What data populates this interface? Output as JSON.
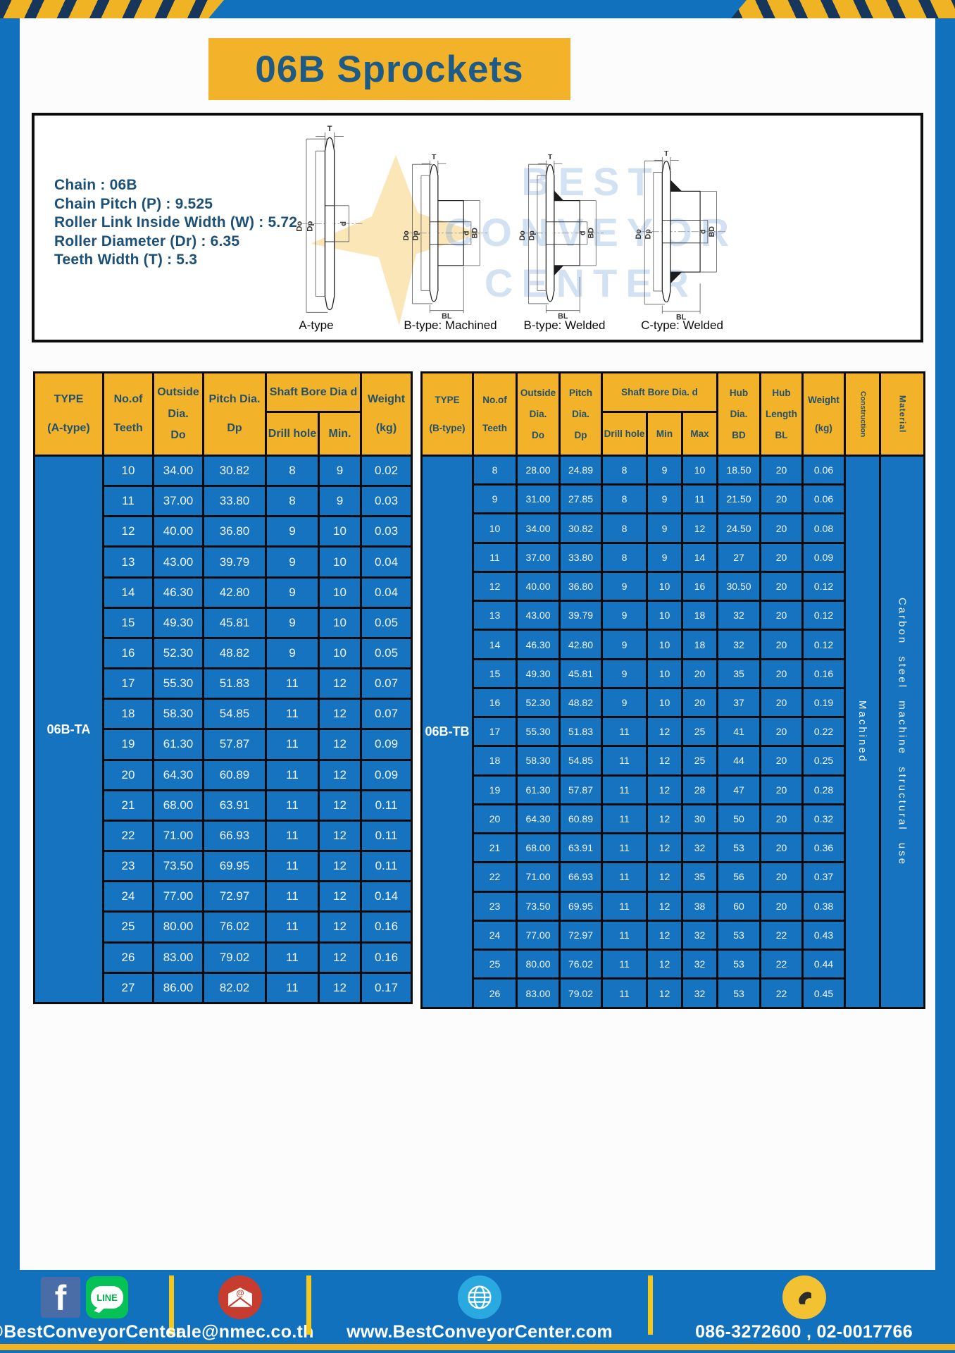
{
  "title": "06B Sprockets",
  "specs": [
    "Chain : 06B",
    "Chain Pitch (P) : 9.525",
    "Roller Link Inside Width (W) : 5.72",
    "Roller Diameter (Dr) : 6.35",
    "Teeth Width (T) : 5.3"
  ],
  "watermark": [
    "BEST",
    "CONVEYOR",
    "CENTER"
  ],
  "diagram": {
    "captions": [
      "A-type",
      "B-type: Machined",
      "B-type: Welded",
      "C-type: Welded"
    ],
    "labels": {
      "t": "T",
      "do": "Do",
      "dp": "Dp",
      "d": "d",
      "bd": "BD",
      "bl": "BL"
    }
  },
  "colors": {
    "page_blue": "#1271bd",
    "cell_blue": "#1673bf",
    "accent_yellow": "#f2b229",
    "stripe_navy": "#16365c",
    "header_text": "#24506a",
    "spec_text": "#1d5077"
  },
  "table_a": {
    "header": {
      "type": [
        "TYPE",
        "(A-type)"
      ],
      "teeth": [
        "No.of",
        "Teeth"
      ],
      "outside": [
        "Outside",
        "Dia.",
        "Do"
      ],
      "pitch": [
        "Pitch Dia.",
        "Dp"
      ],
      "shaft": "Shaft Bore Dia d",
      "drill": "Drill hole",
      "min": "Min.",
      "weight": [
        "Weight",
        "(kg)"
      ]
    },
    "group_label": "06B-TA",
    "rows": [
      [
        "10",
        "34.00",
        "30.82",
        "8",
        "9",
        "0.02"
      ],
      [
        "11",
        "37.00",
        "33.80",
        "8",
        "9",
        "0.03"
      ],
      [
        "12",
        "40.00",
        "36.80",
        "9",
        "10",
        "0.03"
      ],
      [
        "13",
        "43.00",
        "39.79",
        "9",
        "10",
        "0.04"
      ],
      [
        "14",
        "46.30",
        "42.80",
        "9",
        "10",
        "0.04"
      ],
      [
        "15",
        "49.30",
        "45.81",
        "9",
        "10",
        "0.05"
      ],
      [
        "16",
        "52.30",
        "48.82",
        "9",
        "10",
        "0.05"
      ],
      [
        "17",
        "55.30",
        "51.83",
        "11",
        "12",
        "0.07"
      ],
      [
        "18",
        "58.30",
        "54.85",
        "11",
        "12",
        "0.07"
      ],
      [
        "19",
        "61.30",
        "57.87",
        "11",
        "12",
        "0.09"
      ],
      [
        "20",
        "64.30",
        "60.89",
        "11",
        "12",
        "0.09"
      ],
      [
        "21",
        "68.00",
        "63.91",
        "11",
        "12",
        "0.11"
      ],
      [
        "22",
        "71.00",
        "66.93",
        "11",
        "12",
        "0.11"
      ],
      [
        "23",
        "73.50",
        "69.95",
        "11",
        "12",
        "0.11"
      ],
      [
        "24",
        "77.00",
        "72.97",
        "11",
        "12",
        "0.14"
      ],
      [
        "25",
        "80.00",
        "76.02",
        "11",
        "12",
        "0.16"
      ],
      [
        "26",
        "83.00",
        "79.02",
        "11",
        "12",
        "0.16"
      ],
      [
        "27",
        "86.00",
        "82.02",
        "11",
        "12",
        "0.17"
      ]
    ]
  },
  "table_b": {
    "header": {
      "type": [
        "TYPE",
        "(B-type)"
      ],
      "teeth": [
        "No.of",
        "Teeth"
      ],
      "outside": [
        "Outside",
        "Dia.",
        "Do"
      ],
      "pitch": [
        "Pitch",
        "Dia.",
        "Dp"
      ],
      "shaft": "Shaft Bore Dia.  d",
      "drill": "Drill hole",
      "min": "Min",
      "max": "Max",
      "hub_dia": [
        "Hub",
        "Dia.",
        "BD"
      ],
      "hub_len": [
        "Hub",
        "Length",
        "BL"
      ],
      "weight": [
        "Weight",
        "(kg)"
      ],
      "construction": "Construction",
      "material": "Material"
    },
    "group_label": "06B-TB",
    "construction": "Machined",
    "material": "Carbon steel machine structural use",
    "rows": [
      [
        "8",
        "28.00",
        "24.89",
        "8",
        "9",
        "10",
        "18.50",
        "20",
        "0.06"
      ],
      [
        "9",
        "31.00",
        "27.85",
        "8",
        "9",
        "11",
        "21.50",
        "20",
        "0.06"
      ],
      [
        "10",
        "34.00",
        "30.82",
        "8",
        "9",
        "12",
        "24.50",
        "20",
        "0.08"
      ],
      [
        "11",
        "37.00",
        "33.80",
        "8",
        "9",
        "14",
        "27",
        "20",
        "0.09"
      ],
      [
        "12",
        "40.00",
        "36.80",
        "9",
        "10",
        "16",
        "30.50",
        "20",
        "0.12"
      ],
      [
        "13",
        "43.00",
        "39.79",
        "9",
        "10",
        "18",
        "32",
        "20",
        "0.12"
      ],
      [
        "14",
        "46.30",
        "42.80",
        "9",
        "10",
        "18",
        "32",
        "20",
        "0.12"
      ],
      [
        "15",
        "49.30",
        "45.81",
        "9",
        "10",
        "20",
        "35",
        "20",
        "0.16"
      ],
      [
        "16",
        "52.30",
        "48.82",
        "9",
        "10",
        "20",
        "37",
        "20",
        "0.19"
      ],
      [
        "17",
        "55.30",
        "51.83",
        "11",
        "12",
        "25",
        "41",
        "20",
        "0.22"
      ],
      [
        "18",
        "58.30",
        "54.85",
        "11",
        "12",
        "25",
        "44",
        "20",
        "0.25"
      ],
      [
        "19",
        "61.30",
        "57.87",
        "11",
        "12",
        "28",
        "47",
        "20",
        "0.28"
      ],
      [
        "20",
        "64.30",
        "60.89",
        "11",
        "12",
        "30",
        "50",
        "20",
        "0.32"
      ],
      [
        "21",
        "68.00",
        "63.91",
        "11",
        "12",
        "32",
        "53",
        "20",
        "0.36"
      ],
      [
        "22",
        "71.00",
        "66.93",
        "11",
        "12",
        "35",
        "56",
        "20",
        "0.37"
      ],
      [
        "23",
        "73.50",
        "69.95",
        "11",
        "12",
        "38",
        "60",
        "20",
        "0.38"
      ],
      [
        "24",
        "77.00",
        "72.97",
        "11",
        "12",
        "32",
        "53",
        "22",
        "0.43"
      ],
      [
        "25",
        "80.00",
        "76.02",
        "11",
        "12",
        "32",
        "53",
        "22",
        "0.44"
      ],
      [
        "26",
        "83.00",
        "79.02",
        "11",
        "12",
        "32",
        "53",
        "22",
        "0.45"
      ]
    ]
  },
  "footer": {
    "social_label": "@BestConveyorCenter",
    "email": "sale@nmec.co.th",
    "website": "www.BestConveyorCenter.com",
    "phones": "086-3272600 , 02-0017766",
    "line_text": "LINE",
    "facebook_letter": "f"
  }
}
